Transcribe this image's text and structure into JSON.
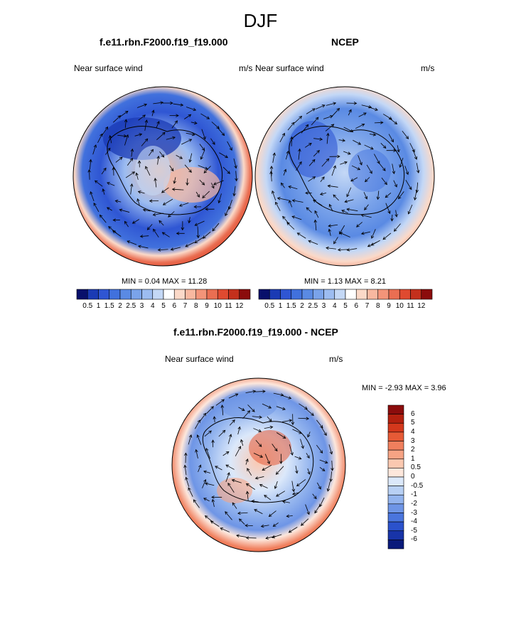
{
  "main_title": "DJF",
  "panels": [
    {
      "id": "model",
      "title": "f.e11.rbn.F2000.f19_f19.000",
      "left_label": "Near surface wind",
      "right_label": "m/s",
      "min_text": "MIN =   0.04 MAX =  11.28",
      "min": 0.04,
      "max": 11.28
    },
    {
      "id": "ncep",
      "title": "NCEP",
      "left_label": "Near surface wind",
      "right_label": "m/s",
      "min_text": "MIN =   1.13 MAX =   8.21",
      "min": 1.13,
      "max": 8.21
    },
    {
      "id": "diff",
      "title": "f.e11.rbn.F2000.f19_f19.000 - NCEP",
      "left_label": "Near surface wind",
      "right_label": "m/s",
      "min_text": "MIN =  -2.93 MAX =   3.96",
      "min": -2.93,
      "max": 3.96
    }
  ],
  "colorbar_horizontal": {
    "labels": [
      "0.5",
      "1",
      "1.5",
      "2",
      "2.5",
      "3",
      "4",
      "5",
      "6",
      "7",
      "8",
      "9",
      "10",
      "11",
      "12"
    ],
    "colors": [
      "#08106b",
      "#1a3ab4",
      "#2f56d3",
      "#4171dd",
      "#5a8ae3",
      "#7aa3ea",
      "#9cbcf1",
      "#c4d8f6",
      "#ffffff",
      "#fbd9c8",
      "#f8b8a0",
      "#f39479",
      "#ea6e52",
      "#df4a30",
      "#c4301c",
      "#8b0c0c"
    ]
  },
  "colorbar_vertical": {
    "labels": [
      "6",
      "5",
      "4",
      "3",
      "2",
      "1",
      "0.5",
      "0",
      "-0.5",
      "-1",
      "-2",
      "-3",
      "-4",
      "-5",
      "-6"
    ],
    "colors": [
      "#8b0c0c",
      "#b3200f",
      "#d4381c",
      "#e65a36",
      "#f07f5d",
      "#f6a384",
      "#fbc8b0",
      "#fde7dc",
      "#dbe8fa",
      "#b8d0f4",
      "#93b4ee",
      "#6e95e6",
      "#4a75dd",
      "#2b52cc",
      "#1834a8",
      "#0a1a7a"
    ]
  }
}
